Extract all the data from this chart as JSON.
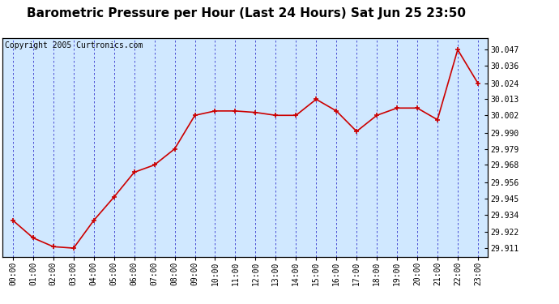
{
  "title": "Barometric Pressure per Hour (Last 24 Hours) Sat Jun 25 23:50",
  "copyright": "Copyright 2005 Curtronics.com",
  "hours": [
    0,
    1,
    2,
    3,
    4,
    5,
    6,
    7,
    8,
    9,
    10,
    11,
    12,
    13,
    14,
    15,
    16,
    17,
    18,
    19,
    20,
    21,
    22,
    23
  ],
  "x_labels": [
    "00:00",
    "01:00",
    "02:00",
    "03:00",
    "04:00",
    "05:00",
    "06:00",
    "07:00",
    "08:00",
    "09:00",
    "10:00",
    "11:00",
    "12:00",
    "13:00",
    "14:00",
    "15:00",
    "16:00",
    "17:00",
    "18:00",
    "19:00",
    "20:00",
    "21:00",
    "22:00",
    "23:00"
  ],
  "values": [
    29.93,
    29.918,
    29.912,
    29.911,
    29.93,
    29.946,
    29.963,
    29.968,
    29.979,
    30.002,
    30.005,
    30.005,
    30.004,
    30.002,
    30.002,
    30.013,
    30.005,
    29.991,
    30.002,
    30.007,
    30.007,
    29.999,
    30.047,
    30.024
  ],
  "y_ticks": [
    29.911,
    29.922,
    29.934,
    29.945,
    29.956,
    29.968,
    29.979,
    29.99,
    30.002,
    30.013,
    30.024,
    30.036,
    30.047
  ],
  "ylim_min": 29.905,
  "ylim_max": 30.055,
  "line_color": "#cc0000",
  "marker_color": "#cc0000",
  "plot_bg_color": "#d0e8ff",
  "fig_bg_color": "#ffffff",
  "grid_color": "#3333cc",
  "border_color": "#000000",
  "title_fontsize": 11,
  "copyright_fontsize": 7,
  "tick_fontsize": 7,
  "ytick_fontsize": 7
}
